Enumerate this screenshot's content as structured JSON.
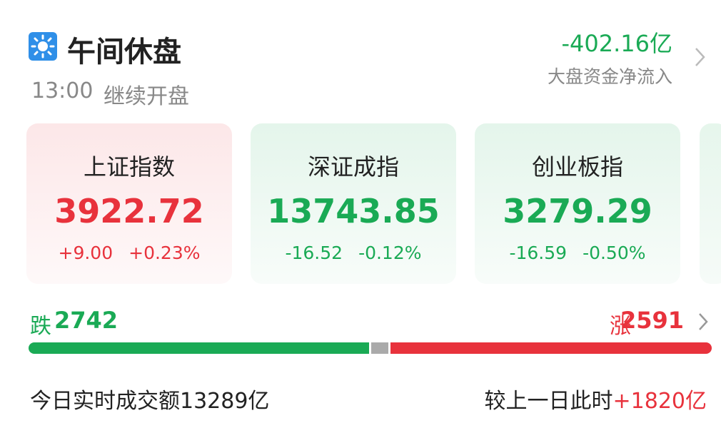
{
  "header": {
    "title": "午间休盘",
    "time": "13:00",
    "status": "继续开盘",
    "net_flow": "-402.16亿",
    "net_flow_color": "#1aaa55",
    "net_flow_label": "大盘资金净流入"
  },
  "indices": [
    {
      "name": "上证指数",
      "value": "3922.72",
      "change": "+9.00",
      "change_pct": "+0.23%",
      "color": "#e8323c"
    },
    {
      "name": "深证成指",
      "value": "13743.85",
      "change": "-16.52",
      "change_pct": "-0.12%",
      "color": "#1aaa55"
    },
    {
      "name": "创业板指",
      "value": "3279.29",
      "change": "-16.59",
      "change_pct": "-0.50%",
      "color": "#1aaa55"
    }
  ],
  "breadth": {
    "fall_label": "跌",
    "fall": 2742,
    "fall_color": "#1aaa55",
    "rise_label": "涨",
    "rise": 2591,
    "rise_color": "#e8323c"
  },
  "turnover": {
    "label": "今日实时成交额",
    "value": "13289亿",
    "compare_label": "较上一日此时",
    "compare": "+1820亿",
    "compare_color": "#e8323c"
  }
}
